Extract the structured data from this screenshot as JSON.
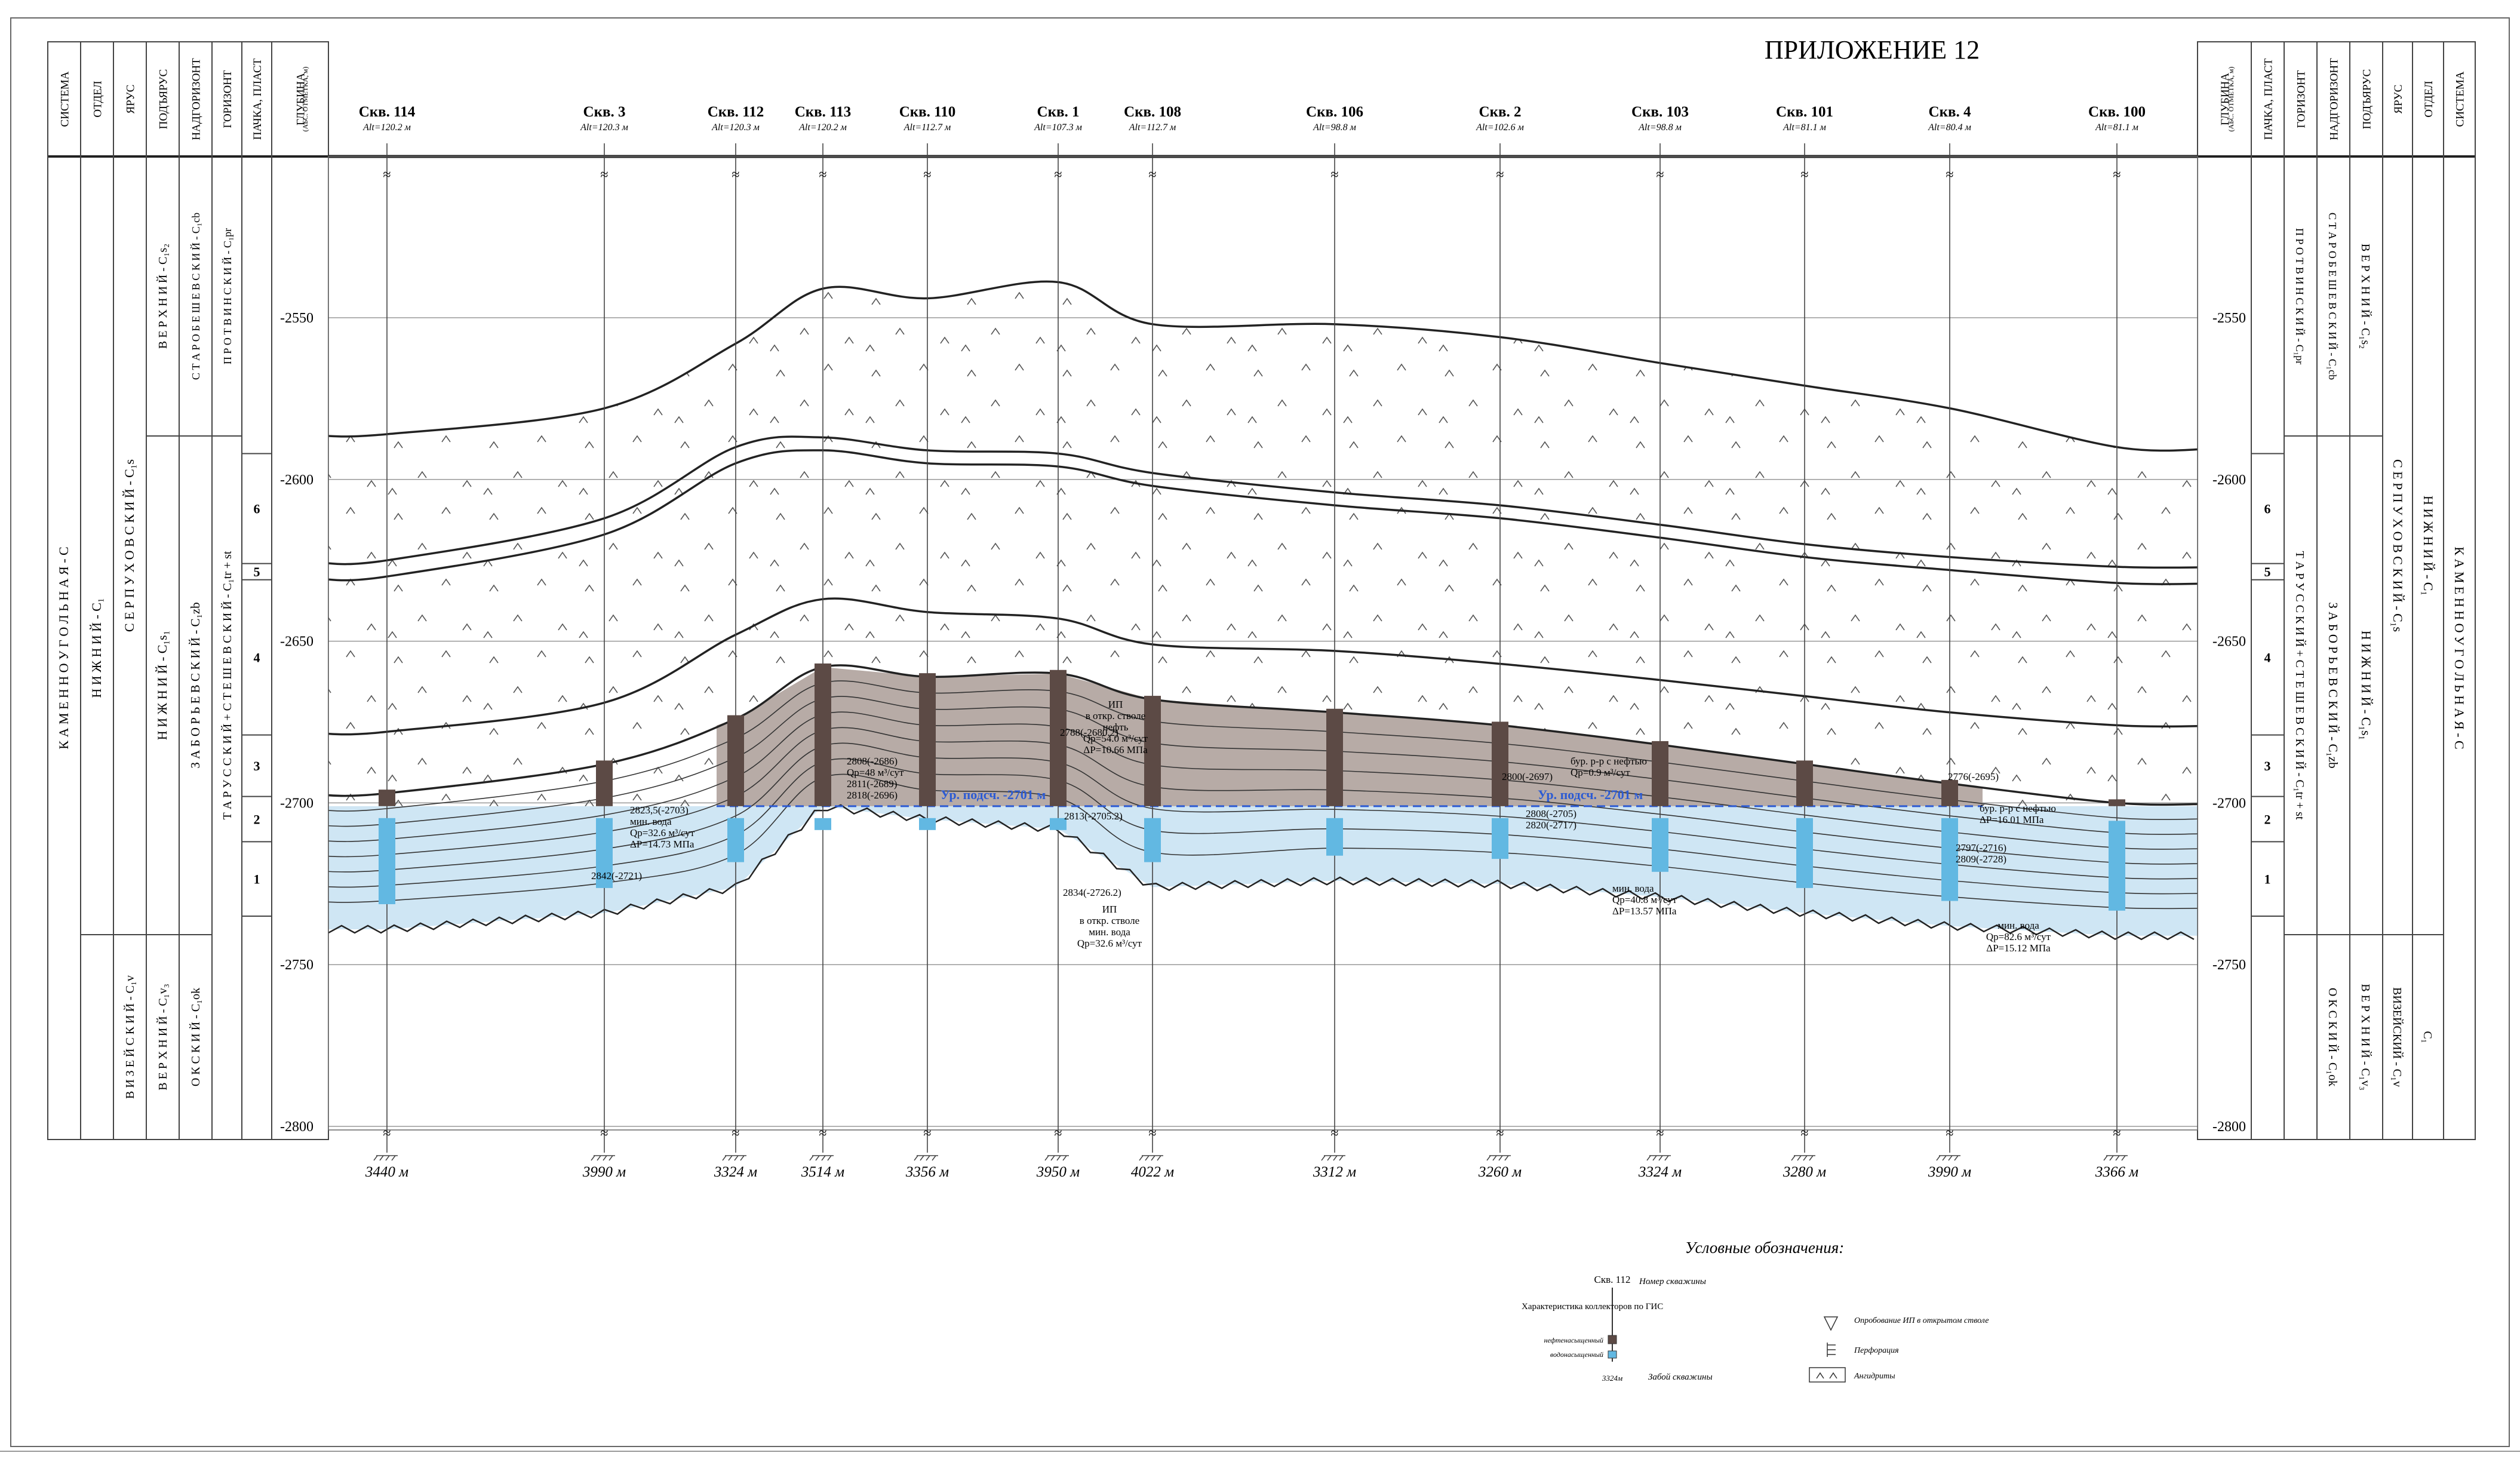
{
  "title": "ПРИЛОЖЕНИЕ 12",
  "colors": {
    "oil": "#b7aba6",
    "oil_dark": "#5c4a45",
    "water": "#cfe6f4",
    "water_dark": "#62b8e2",
    "line": "#222222",
    "wlc": "#2c5bd3"
  },
  "left_headers": [
    "СИСТЕМА",
    "ОТДЕЛ",
    "ЯРУС",
    "ПОДЪЯРУС",
    "НАДГОРИЗОНТ",
    "ГОРИЗОНТ",
    "ПАЧКА, ПЛАСТ",
    "ГЛУБИНА"
  ],
  "depth_header_sub": "(АБС. ОТМЕТКА, м)",
  "right_headers": [
    "ГЛУБИНА",
    "ПАЧКА, ПЛАСТ",
    "ГОРИЗОНТ",
    "НАДГОРИЗОНТ",
    "ПОДЪЯРУС",
    "ЯРУС",
    "ОТДЕЛ",
    "СИСТЕМА"
  ],
  "left_strat": {
    "system": "К А М Е Н Н О У Г О Л Ь Н А Я  -  С",
    "otdel_top": "Н И Ж Н И Й  -  С₁",
    "yarus_top": "С Е Р П У Х О В С К И Й  -  С₁s",
    "yarus_bottom": "В И З Е Й С К И Й - С₁v",
    "podyarus_top": "В Е Р Х Н И Й  -  С₁s₂",
    "podyarus_mid": "Н И Ж Н И Й  -  С₁s₁",
    "podyarus_bottom": "В Е Р Х Н И Й - С₁v₃",
    "nadgor_top": "С Т А Р О Б Е Ш Е В С К И Й  -  С₁cb",
    "nadgor_mid": "З А Б О Р Ь Е В С К И Й  -  С₁zb",
    "nadgor_bottom": "О К С К И Й - С₁ok",
    "gorizont_top": "П Р О Т В И Н С К И Й  -  С₁pr",
    "gorizont_mid": "Т А Р У С С К И Й + С Т Е Ш Е В С К И Й  -  С₁tr + st"
  },
  "right_strat": {
    "system": "К А М Е Н Н О У Г О Л Ь Н А Я  -  С",
    "otdel_top": "Н И Ж Н И Й  -  С₁",
    "otdel_bottom": "С₁",
    "yarus_top": "С Е Р П У Х О В С К И Й  -  С₁s",
    "yarus_bottom": "ВИЗЕЙСКИЙ - С₁v",
    "podyarus_top": "В Е Р Х Н И Й - С₁s₂",
    "podyarus_mid": "Н И Ж Н И Й  -  С₁s₁",
    "podyarus_bottom": "В Е Р Х Н И Й - С₁v₃",
    "nadgor_top": "С Т А Р О Б Е Ш Е В С К И Й - С₁cb",
    "nadgor_mid": "З А Б О Р Ь Е В С К И Й  -  С₁zb",
    "nadgor_bottom": "О К С К И Й - С₁ok",
    "gorizont_top": "П Р О Т В И Н С К И Й - С₁pr",
    "gorizont_mid": "Т А Р У С С К И Й + С Т Е Ш Е В С К И Й  -  С₁tr + st"
  },
  "packs": [
    "6",
    "5",
    "4",
    "3",
    "2",
    "1"
  ],
  "depth_ticks": [
    "-2550",
    "-2600",
    "-2650",
    "-2700",
    "-2750",
    "-2800"
  ],
  "wells": [
    {
      "name": "Скв. 114",
      "alt": "Alt=120.2 м",
      "td": "3440 м"
    },
    {
      "name": "Скв. 3",
      "alt": "Alt=120.3 м",
      "td": "3990 м"
    },
    {
      "name": "Скв. 112",
      "alt": "Alt=120.3 м",
      "td": "3324 м"
    },
    {
      "name": "Скв. 113",
      "alt": "Alt=120.2 м",
      "td": "3514 м"
    },
    {
      "name": "Скв. 110",
      "alt": "Alt=112.7 м",
      "td": "3356 м"
    },
    {
      "name": "Скв. 1",
      "alt": "Alt=107.3 м",
      "td": "3950 м"
    },
    {
      "name": "Скв. 108",
      "alt": "Alt=112.7 м",
      "td": "4022 м"
    },
    {
      "name": "Скв. 106",
      "alt": "Alt=98.8 м",
      "td": "3312 м"
    },
    {
      "name": "Скв. 2",
      "alt": "Alt=102.6 м",
      "td": "3260 м"
    },
    {
      "name": "Скв. 103",
      "alt": "Alt=98.8 м",
      "td": "3324 м"
    },
    {
      "name": "Скв. 101",
      "alt": "Alt=81.1 м",
      "td": "3280 м"
    },
    {
      "name": "Скв. 4",
      "alt": "Alt=80.4 м",
      "td": "3990 м"
    },
    {
      "name": "Скв. 100",
      "alt": "Alt=81.1 м",
      "td": "3366 м"
    }
  ],
  "owc_label": "Ур. подсч. -2701 м",
  "annotations": {
    "w3": [
      "2823,5(-2703)",
      "мин. вода",
      "Qp=32.6 м³/сут",
      "ΔP=14.73 МПа",
      "2842(-2721)"
    ],
    "w113": [
      "2808(-2686)",
      "Qp=48 м³/сут",
      "2811(-2689)",
      "2818(-2696)"
    ],
    "w1": [
      "ИП",
      "в откр. стволе",
      "нефть",
      "Qp=54.0 м³/сут",
      "ΔP=10.66 МПа",
      "2788(-2680.2)",
      "2813(-2705.2)",
      "2834(-2726.2)",
      "ИП",
      "в откр. стволе",
      "мин. вода",
      "Qp=32.6 м³/сут"
    ],
    "w2": [
      "2800(-2697)",
      "бур. р-р с нефтью",
      "Qp=0.9 м³/сут",
      "2808(-2705)",
      "2820(-2717)",
      "мин. вода",
      "Qp=40.8 м³/сут",
      "ΔP=13.57 МПа"
    ],
    "w4": [
      "2776(-2695)",
      "бур. р-р с нефтью",
      "ΔP=16.01 МПа",
      "2797(-2716)",
      "2809(-2728)",
      "мин. вода",
      "Qp=82.6 м³/сут",
      "ΔP=15.12 МПа"
    ]
  },
  "legend": {
    "title": "Условные обозначения:",
    "well_number": "Скв. 112",
    "well_number_desc": "Номер скважины",
    "gis_char": "Характеристика коллекторов по ГИС",
    "oil_sat": "нефтенасыщенный",
    "water_sat": "водонасыщенный",
    "td": "3324м",
    "td_desc": "Забой скважины",
    "ip_desc": "Опробование ИП в открытом стволе",
    "perf_desc": "Перфорация",
    "anhydrite_desc": "Ангидриты"
  }
}
